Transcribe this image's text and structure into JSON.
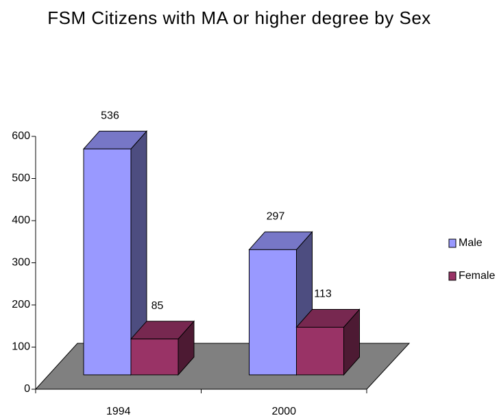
{
  "chart_data": {
    "type": "bar3d",
    "title": "FSM Citizens with MA or higher degree by Sex",
    "categories": [
      "1994",
      "2000"
    ],
    "series": [
      {
        "name": "Male",
        "color": "#9999ff",
        "values": [
          536,
          297
        ]
      },
      {
        "name": "Female",
        "color": "#993366",
        "values": [
          85,
          113
        ]
      }
    ],
    "ylim": [
      0,
      600
    ],
    "yticks": [
      0,
      100,
      200,
      300,
      400,
      500,
      600
    ],
    "legend": "right"
  }
}
